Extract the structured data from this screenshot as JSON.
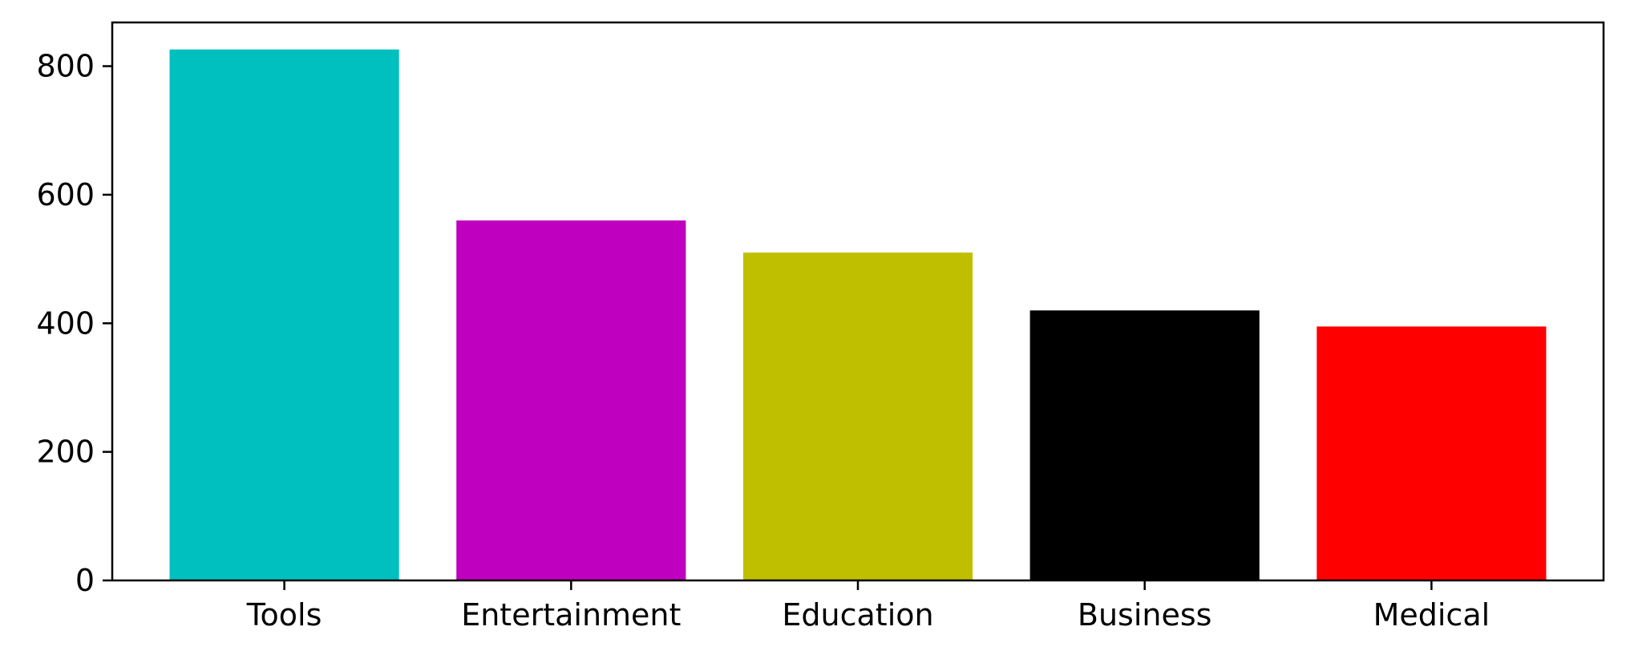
{
  "chart_data": {
    "type": "bar",
    "title": "",
    "xlabel": "",
    "ylabel": "",
    "categories": [
      "Tools",
      "Entertainment",
      "Education",
      "Business",
      "Medical"
    ],
    "values": [
      826,
      560,
      510,
      420,
      395
    ],
    "colors": [
      "#00bfbf",
      "#bf00bf",
      "#bfbf00",
      "#000000",
      "#ff0000"
    ],
    "ylim": [
      0,
      868
    ],
    "yticks": [
      0,
      200,
      400,
      600,
      800
    ],
    "grid": false,
    "legend": "none"
  }
}
